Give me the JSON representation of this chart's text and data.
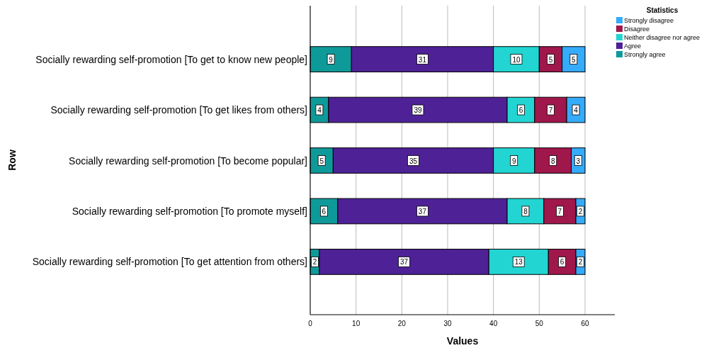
{
  "chart_data": {
    "type": "bar",
    "orientation": "horizontal",
    "stacked": true,
    "xlabel": "Values",
    "ylabel": "Row",
    "legend_title": "Statistics",
    "categories": [
      "Socially rewarding self-promotion [To get to know new people]",
      "Socially rewarding self-promotion [To get likes from others]",
      "Socially rewarding self-promotion [To become popular]",
      "Socially rewarding self-promotion [To promote myself]",
      "Socially rewarding self-promotion [To get attention from others]"
    ],
    "series": [
      {
        "name": "Strongly agree",
        "color": "#0f9a9a",
        "values": [
          9,
          4,
          5,
          6,
          2
        ]
      },
      {
        "name": "Agree",
        "color": "#4e2196",
        "values": [
          31,
          39,
          35,
          37,
          37
        ]
      },
      {
        "name": "Neither disagree nor agree",
        "color": "#22d5d2",
        "values": [
          10,
          6,
          9,
          8,
          13
        ]
      },
      {
        "name": "Disagree",
        "color": "#a0174c",
        "values": [
          5,
          7,
          8,
          7,
          6
        ]
      },
      {
        "name": "Strongly disagree",
        "color": "#35abfb",
        "values": [
          5,
          4,
          3,
          2,
          2
        ]
      }
    ],
    "xlim": [
      0,
      66.5
    ],
    "xticks": [
      0,
      10,
      20,
      30,
      40,
      50,
      60
    ],
    "grid": "x",
    "legend": "top right",
    "data_labels": true
  }
}
